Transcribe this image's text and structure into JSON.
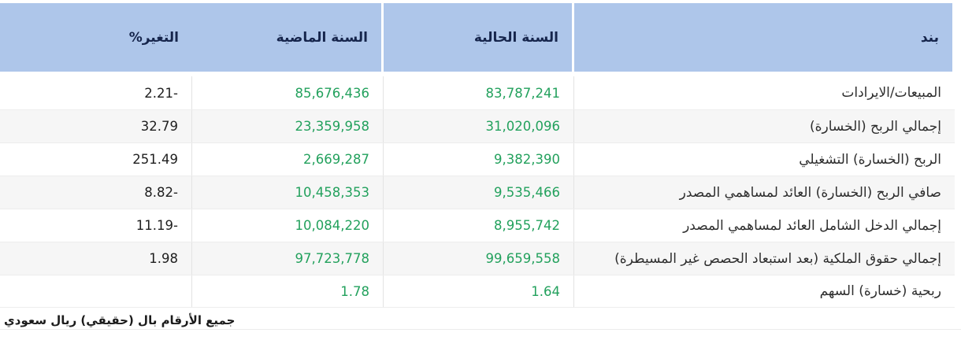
{
  "table": {
    "columns": {
      "item": "بند",
      "current": "السنة الحالية",
      "previous": "السنة الماضية",
      "change": "التغير%"
    },
    "rows": [
      {
        "item": "المبيعات/الايرادات",
        "current": "83,787,241",
        "previous": "85,676,436",
        "change": "2.21-"
      },
      {
        "item": "إجمالي الربح (الخسارة)",
        "current": "31,020,096",
        "previous": "23,359,958",
        "change": "32.79"
      },
      {
        "item": "الربح (الخسارة) التشغيلي",
        "current": "9,382,390",
        "previous": "2,669,287",
        "change": "251.49"
      },
      {
        "item": "صافي الربح (الخسارة) العائد لمساهمي المصدر",
        "current": "9,535,466",
        "previous": "10,458,353",
        "change": "8.82-"
      },
      {
        "item": "إجمالي الدخل الشامل العائد لمساهمي المصدر",
        "current": "8,955,742",
        "previous": "10,084,220",
        "change": "11.19-"
      },
      {
        "item": "إجمالي حقوق الملكية (بعد استبعاد الحصص غير المسيطرة)",
        "current": "99,659,558",
        "previous": "97,723,778",
        "change": "1.98"
      },
      {
        "item": "ربحية (خسارة) السهم",
        "current": "1.64",
        "previous": "1.78",
        "change": ""
      }
    ],
    "footnote": "جميع الأرقام بال (حقيقي) ريال سعودي"
  },
  "colors": {
    "header_bg": "#aec6ea",
    "header_text": "#16254c",
    "value_green": "#23a15d",
    "change_text": "#1e1e1e",
    "stripe_bg": "#f6f6f6"
  }
}
